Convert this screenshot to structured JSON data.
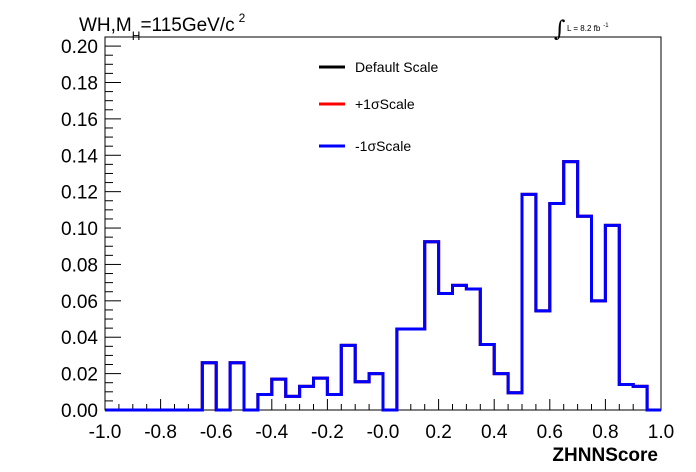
{
  "title": {
    "prefix": "WH,M",
    "subscript": "H",
    "main": "=115GeV/c",
    "superscript": "2"
  },
  "luminosity": {
    "integral_symbol": "∫",
    "text": "L = 8.2 fb",
    "superscript": "-1"
  },
  "chart_data": {
    "type": "line",
    "subtype": "step-histogram",
    "xlabel": "ZHNNScore",
    "ylabel": "",
    "xlim": [
      -1.0,
      1.0
    ],
    "ylim": [
      0.0,
      0.205
    ],
    "x_ticks": [
      "-1.0",
      "-0.8",
      "-0.6",
      "-0.4",
      "-0.2",
      "-0.0",
      "0.2",
      "0.4",
      "0.6",
      "0.8",
      "1.0"
    ],
    "y_ticks": [
      "0.00",
      "0.02",
      "0.04",
      "0.06",
      "0.08",
      "0.10",
      "0.12",
      "0.14",
      "0.16",
      "0.18",
      "0.20"
    ],
    "bin_edges": [
      -1.0,
      -0.95,
      -0.9,
      -0.85,
      -0.8,
      -0.75,
      -0.7,
      -0.65,
      -0.6,
      -0.55,
      -0.5,
      -0.45,
      -0.4,
      -0.35,
      -0.3,
      -0.25,
      -0.2,
      -0.15,
      -0.1,
      -0.05,
      0.0,
      0.05,
      0.1,
      0.15,
      0.2,
      0.25,
      0.3,
      0.35,
      0.4,
      0.45,
      0.5,
      0.55,
      0.6,
      0.65,
      0.7,
      0.75,
      0.8,
      0.85,
      0.9,
      0.95,
      1.0
    ],
    "legend_position": "top-center",
    "grid": false,
    "series": [
      {
        "name": "Default Scale",
        "color": "#000000",
        "values": [
          0,
          0,
          0,
          0,
          0,
          0,
          0,
          0.026,
          0,
          0.026,
          0,
          0.0085,
          0.017,
          0.0075,
          0.013,
          0.0175,
          0.0085,
          0.0355,
          0.0155,
          0.02,
          0,
          0.0445,
          0.0445,
          0.0925,
          0.064,
          0.0685,
          0.0665,
          0.036,
          0.02,
          0.0095,
          0.1185,
          0.0545,
          0.1135,
          0.1365,
          0.1065,
          0.06,
          0.1015,
          0.014,
          0.013,
          0
        ]
      },
      {
        "name": "+1σScale",
        "color": "#ff0000",
        "values": [
          0,
          0,
          0,
          0,
          0,
          0,
          0,
          0.026,
          0,
          0.026,
          0,
          0.0085,
          0.017,
          0.0075,
          0.013,
          0.0175,
          0.0085,
          0.0355,
          0.0155,
          0.02,
          0,
          0.0445,
          0.0445,
          0.0925,
          0.064,
          0.0685,
          0.0665,
          0.036,
          0.02,
          0.0095,
          0.1185,
          0.0545,
          0.1135,
          0.1365,
          0.1065,
          0.06,
          0.1015,
          0.014,
          0.013,
          0
        ]
      },
      {
        "name": "-1σScale",
        "color": "#0000ff",
        "values": [
          0,
          0,
          0,
          0,
          0,
          0,
          0,
          0.026,
          0,
          0.026,
          0,
          0.0085,
          0.017,
          0.0075,
          0.013,
          0.0175,
          0.0085,
          0.0355,
          0.0155,
          0.02,
          0,
          0.0445,
          0.0445,
          0.0925,
          0.064,
          0.0685,
          0.0665,
          0.036,
          0.02,
          0.0095,
          0.1185,
          0.0545,
          0.1135,
          0.1365,
          0.1065,
          0.06,
          0.1015,
          0.014,
          0.013,
          0
        ]
      }
    ]
  }
}
